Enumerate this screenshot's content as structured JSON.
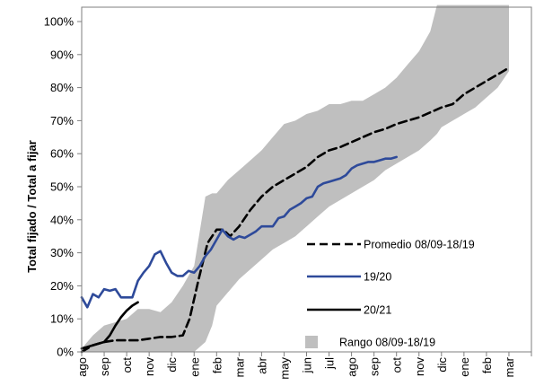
{
  "chart_data": {
    "type": "line",
    "title": "",
    "xlabel": "",
    "ylabel": "Total fijado / Total a fijar",
    "ylim": [
      0,
      100
    ],
    "y_ticks": [
      "0%",
      "10%",
      "20%",
      "30%",
      "40%",
      "50%",
      "60%",
      "70%",
      "80%",
      "90%",
      "100%"
    ],
    "x_tick_labels": [
      "ago",
      "sep",
      "oct",
      "nov",
      "dic",
      "ene",
      "feb",
      "mar",
      "abr",
      "may",
      "jun",
      "jul",
      "ago",
      "sep",
      "oct",
      "nov",
      "dic",
      "ene",
      "feb",
      "mar"
    ],
    "grid": false,
    "legend_position": "bottom-right",
    "colors": {
      "promedio": "#000000",
      "s1920": "#2e4a9a",
      "s2021": "#000000",
      "rango": "#bfbfbf"
    },
    "band": {
      "name": "Rango 08/09-18/19",
      "x": [
        0,
        0.5,
        1,
        1.5,
        2,
        2.5,
        3,
        3.5,
        4,
        4.5,
        5,
        5.5,
        5.8,
        6,
        6.5,
        7,
        7.5,
        8,
        8.5,
        9,
        9.5,
        10,
        10.5,
        11,
        11.5,
        12,
        12.5,
        13,
        13.5,
        14,
        14.5,
        15,
        15.5,
        15.8,
        16,
        16.5,
        17,
        17.5,
        18,
        18.5,
        19
      ],
      "lower": [
        0,
        0,
        0,
        0,
        0,
        0,
        0,
        0,
        0,
        0,
        0,
        3,
        8,
        14,
        18,
        22,
        25,
        28,
        31,
        33,
        35,
        38,
        41,
        44,
        46,
        48,
        50,
        52,
        55,
        57,
        59,
        61,
        64,
        66,
        68,
        70,
        72,
        74,
        77,
        80,
        85
      ],
      "upper": [
        1,
        5,
        8,
        9,
        10,
        13,
        13,
        12,
        15,
        20,
        26,
        47,
        48,
        48,
        52,
        55,
        58,
        61,
        65,
        69,
        70,
        72,
        73,
        75,
        75,
        76,
        76,
        78,
        80,
        83,
        87,
        91,
        97,
        105,
        105,
        105,
        105,
        105,
        105,
        105,
        105
      ]
    },
    "series": [
      {
        "name": "Promedio 08/09-18/19",
        "x": [
          0,
          0.5,
          1,
          1.5,
          2,
          2.5,
          3,
          3.5,
          4,
          4.5,
          4.8,
          5.2,
          5.6,
          6,
          6.3,
          6.6,
          7,
          7.5,
          8,
          8.5,
          9,
          9.5,
          10,
          10.5,
          11,
          11.5,
          12,
          12.5,
          13,
          13.5,
          14,
          14.5,
          15,
          15.5,
          16,
          16.5,
          17,
          17.5,
          18,
          18.5,
          19
        ],
        "values": [
          0,
          2,
          3,
          3.5,
          3.5,
          3.5,
          4,
          4.5,
          4.5,
          5,
          10,
          22,
          33,
          37,
          37,
          35,
          38,
          43,
          47,
          50,
          52,
          54,
          56,
          59,
          61,
          62,
          63.5,
          65,
          66.5,
          67.5,
          69,
          70,
          71,
          72.5,
          74,
          75,
          78,
          80,
          82,
          84,
          86
        ]
      },
      {
        "name": "19/20",
        "x": [
          0,
          0.25,
          0.5,
          0.75,
          1,
          1.25,
          1.5,
          1.75,
          2,
          2.25,
          2.5,
          2.75,
          3,
          3.25,
          3.5,
          3.75,
          4,
          4.25,
          4.5,
          4.75,
          5,
          5.25,
          5.5,
          5.75,
          6,
          6.25,
          6.5,
          6.75,
          7,
          7.25,
          7.5,
          7.75,
          8,
          8.25,
          8.5,
          8.75,
          9,
          9.25,
          9.5,
          9.75,
          10,
          10.25,
          10.5,
          10.75,
          11,
          11.25,
          11.5,
          11.75,
          12,
          12.25,
          12.5,
          12.75,
          13,
          13.25,
          13.5,
          13.75,
          14
        ],
        "values": [
          16.5,
          13.5,
          17.5,
          16.5,
          19,
          18.5,
          19,
          16.5,
          16.5,
          16.5,
          21.5,
          24,
          26,
          29.5,
          30.5,
          27,
          24,
          23,
          23,
          24.5,
          24,
          26,
          29,
          31,
          34,
          37,
          35,
          34,
          35,
          34.5,
          35.5,
          36.5,
          38,
          38,
          38,
          40.5,
          41,
          43,
          44,
          45,
          46.5,
          47,
          50,
          51,
          51.5,
          52,
          52.5,
          53.5,
          55.5,
          56.5,
          57,
          57.5,
          57.5,
          58,
          58.5,
          58.5,
          59
        ]
      },
      {
        "name": "20/21",
        "x": [
          0,
          0.25,
          0.5,
          0.75,
          1,
          1.25,
          1.5,
          1.75,
          2,
          2.25,
          2.5
        ],
        "values": [
          1,
          1.5,
          2,
          2.5,
          3,
          5,
          8,
          10.5,
          12.5,
          14,
          15
        ]
      }
    ]
  }
}
